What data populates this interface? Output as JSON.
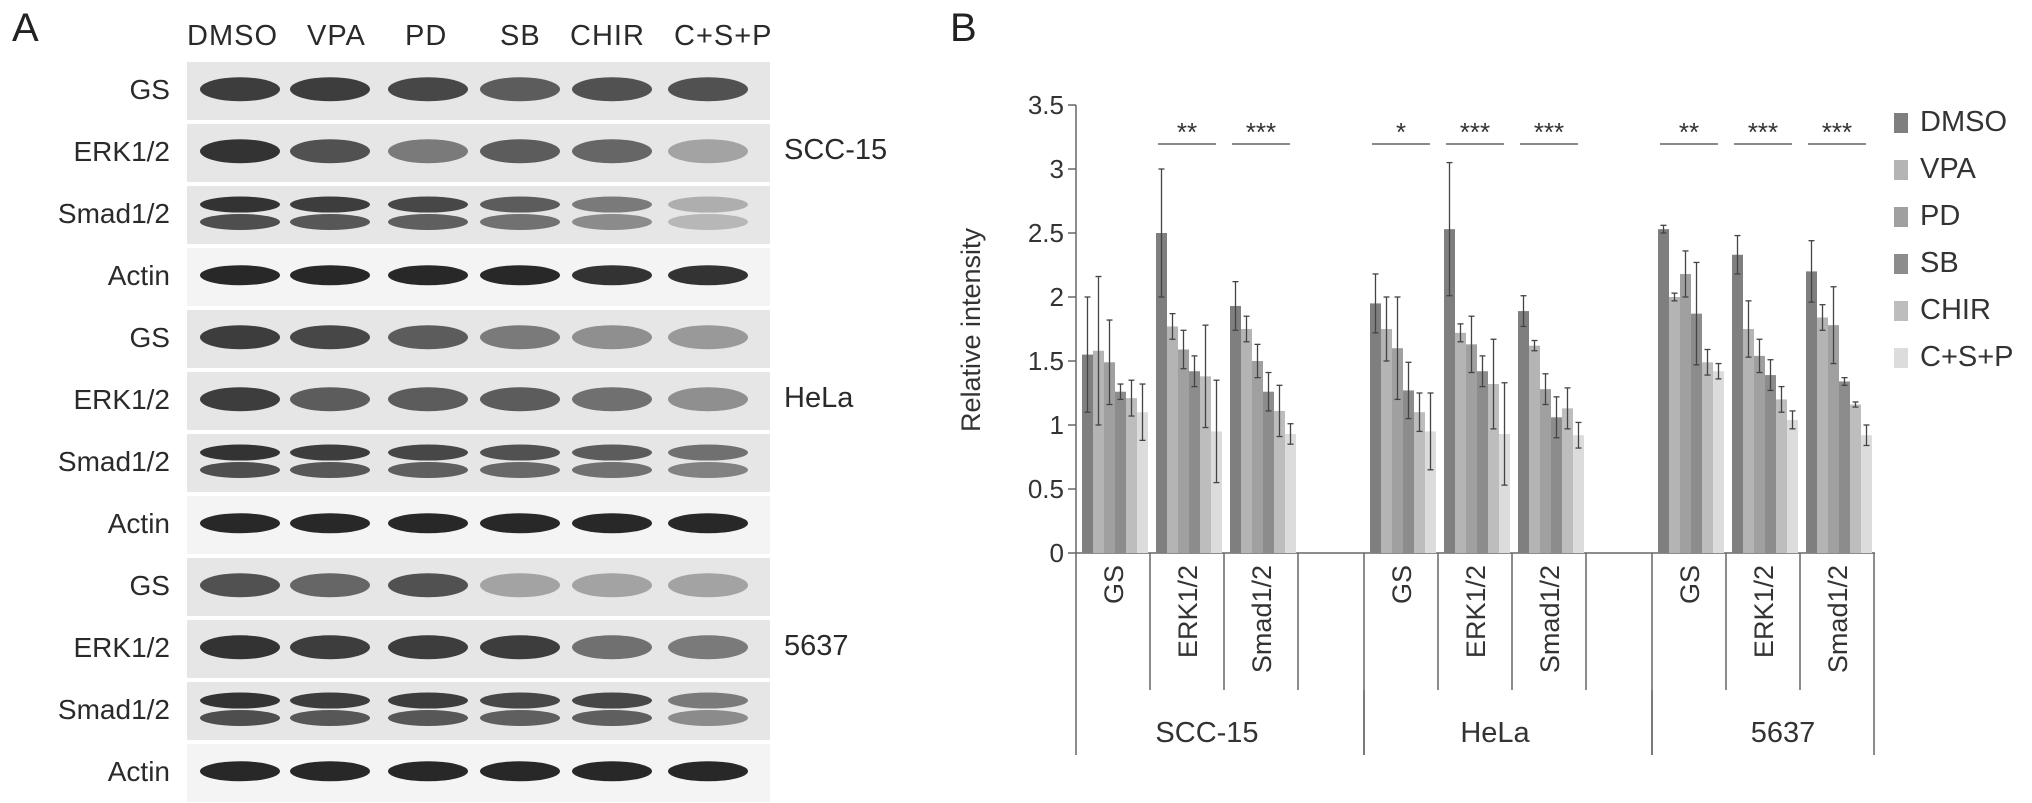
{
  "panel_a": {
    "letter": "A",
    "treatments": [
      "DMSO",
      "VPA",
      "PD",
      "SB",
      "CHIR",
      "C+S+P"
    ],
    "groups": [
      {
        "cell_line": "SCC-15",
        "rows": [
          {
            "label": "GS",
            "intensities": [
              0.85,
              0.85,
              0.8,
              0.7,
              0.75,
              0.75
            ]
          },
          {
            "label": "ERK1/2",
            "intensities": [
              0.9,
              0.75,
              0.55,
              0.7,
              0.65,
              0.35
            ]
          },
          {
            "label": "Smad1/2",
            "intensities": [
              0.9,
              0.85,
              0.8,
              0.7,
              0.55,
              0.3
            ]
          },
          {
            "label": "Actin",
            "intensities": [
              0.95,
              0.95,
              0.95,
              0.95,
              0.9,
              0.9
            ]
          }
        ]
      },
      {
        "cell_line": "HeLa",
        "rows": [
          {
            "label": "GS",
            "intensities": [
              0.85,
              0.8,
              0.7,
              0.55,
              0.45,
              0.4
            ]
          },
          {
            "label": "ERK1/2",
            "intensities": [
              0.85,
              0.7,
              0.7,
              0.7,
              0.6,
              0.45
            ]
          },
          {
            "label": "Smad1/2",
            "intensities": [
              0.9,
              0.85,
              0.8,
              0.75,
              0.7,
              0.6
            ]
          },
          {
            "label": "Actin",
            "intensities": [
              0.95,
              0.95,
              0.95,
              0.95,
              0.95,
              0.95
            ]
          }
        ]
      },
      {
        "cell_line": "5637",
        "rows": [
          {
            "label": "GS",
            "intensities": [
              0.75,
              0.65,
              0.75,
              0.35,
              0.35,
              0.35
            ]
          },
          {
            "label": "ERK1/2",
            "intensities": [
              0.9,
              0.85,
              0.85,
              0.85,
              0.6,
              0.55
            ]
          },
          {
            "label": "Smad1/2",
            "intensities": [
              0.9,
              0.85,
              0.85,
              0.8,
              0.8,
              0.55
            ]
          },
          {
            "label": "Actin",
            "intensities": [
              0.95,
              0.95,
              0.95,
              0.95,
              0.95,
              0.95
            ]
          }
        ]
      }
    ]
  },
  "chart_data": {
    "panel_letter": "B",
    "type": "bar",
    "ylabel": "Relative intensity",
    "xlabel": "",
    "ylim": [
      0,
      3.5
    ],
    "yticks": [
      "0",
      "0.5",
      "1",
      "1.5",
      "2",
      "2.5",
      "3",
      "3.5"
    ],
    "grid": false,
    "legend_position": "right",
    "series_names": [
      "DMSO",
      "VPA",
      "PD",
      "SB",
      "CHIR",
      "C+S+P"
    ],
    "series_colors": [
      "#7f7f7f",
      "#b4b4b4",
      "#a0a0a0",
      "#8c8c8c",
      "#bdbdbd",
      "#dcdcdc"
    ],
    "groups": [
      {
        "cell_line": "SCC-15",
        "proteins": [
          {
            "label": "GS",
            "values": [
              1.55,
              1.58,
              1.49,
              1.26,
              1.21,
              1.1
            ],
            "errors": [
              0.45,
              0.58,
              0.33,
              0.06,
              0.14,
              0.22
            ],
            "significance": ""
          },
          {
            "label": "ERK1/2",
            "values": [
              2.5,
              1.77,
              1.59,
              1.42,
              1.38,
              0.95
            ],
            "errors": [
              0.5,
              0.1,
              0.15,
              0.12,
              0.4,
              0.4
            ],
            "significance": "**"
          },
          {
            "label": "Smad1/2",
            "values": [
              1.93,
              1.75,
              1.5,
              1.26,
              1.11,
              0.93
            ],
            "errors": [
              0.19,
              0.1,
              0.13,
              0.15,
              0.2,
              0.08
            ],
            "significance": "***"
          }
        ]
      },
      {
        "cell_line": "HeLa",
        "proteins": [
          {
            "label": "GS",
            "values": [
              1.95,
              1.75,
              1.6,
              1.27,
              1.1,
              0.95
            ],
            "errors": [
              0.23,
              0.25,
              0.4,
              0.22,
              0.15,
              0.3
            ],
            "significance": "*"
          },
          {
            "label": "ERK1/2",
            "values": [
              2.53,
              1.72,
              1.63,
              1.42,
              1.32,
              0.93
            ],
            "errors": [
              0.52,
              0.07,
              0.22,
              0.12,
              0.35,
              0.4
            ],
            "significance": "***"
          },
          {
            "label": "Smad1/2",
            "values": [
              1.89,
              1.62,
              1.28,
              1.06,
              1.13,
              0.92
            ],
            "errors": [
              0.12,
              0.04,
              0.12,
              0.16,
              0.16,
              0.1
            ],
            "significance": "***"
          }
        ]
      },
      {
        "cell_line": "5637",
        "proteins": [
          {
            "label": "GS",
            "values": [
              2.53,
              2.0,
              2.18,
              1.87,
              1.49,
              1.42
            ],
            "errors": [
              0.03,
              0.03,
              0.18,
              0.4,
              0.1,
              0.06
            ],
            "significance": "**"
          },
          {
            "label": "ERK1/2",
            "values": [
              2.33,
              1.75,
              1.54,
              1.39,
              1.2,
              1.04
            ],
            "errors": [
              0.15,
              0.22,
              0.13,
              0.12,
              0.1,
              0.07
            ],
            "significance": "***"
          },
          {
            "label": "Smad1/2",
            "values": [
              2.2,
              1.84,
              1.78,
              1.34,
              1.16,
              0.92
            ],
            "errors": [
              0.24,
              0.1,
              0.3,
              0.03,
              0.02,
              0.08
            ],
            "significance": "***"
          }
        ]
      }
    ]
  }
}
